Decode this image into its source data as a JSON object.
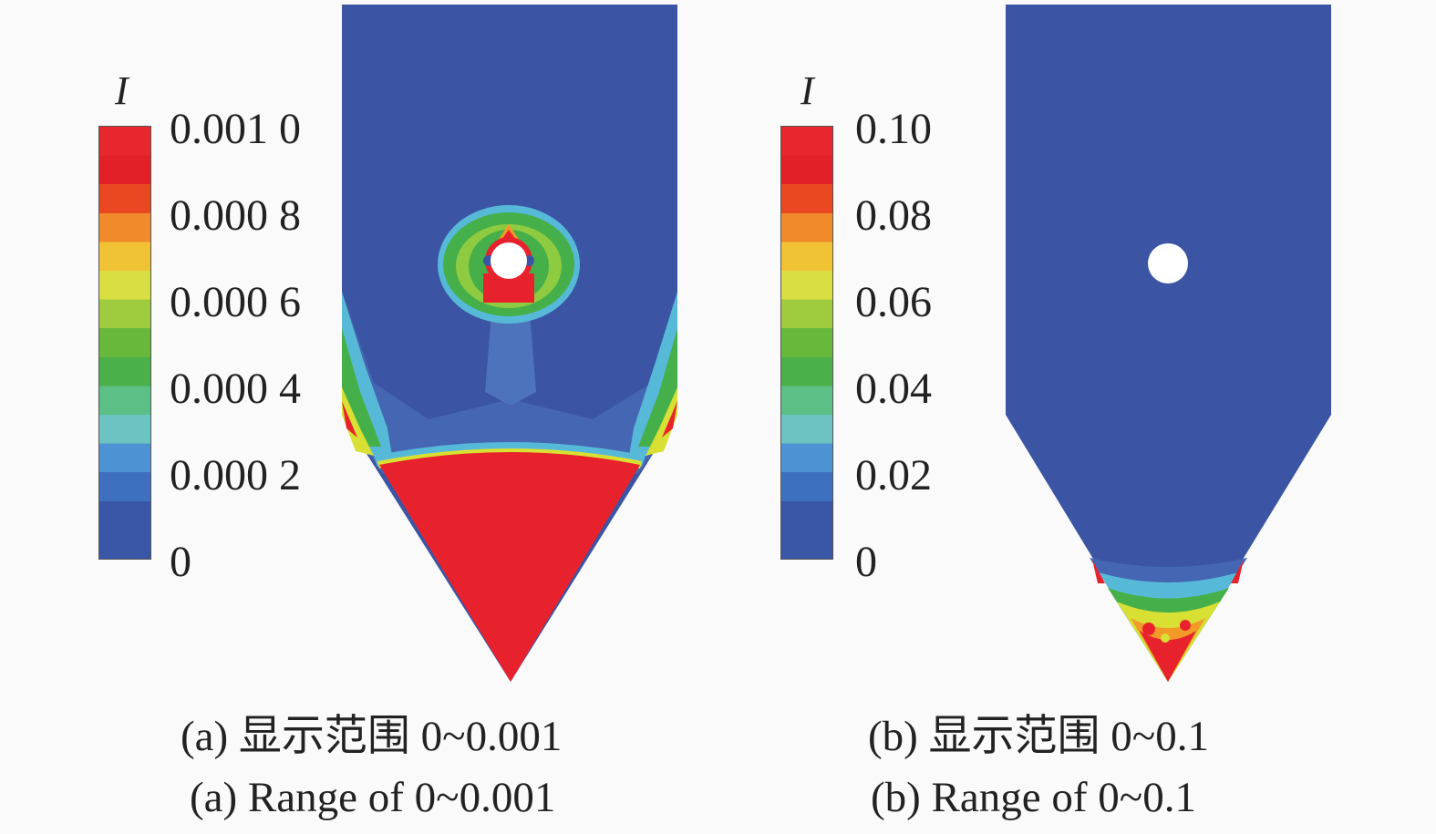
{
  "panels": [
    {
      "id": "a",
      "variable": "I",
      "ticks": [
        "0.001 0",
        "0.000 8",
        "0.000 6",
        "0.000 4",
        "0.000 2",
        "0"
      ],
      "caption_zh": "(a) 显示范围 0~0.001",
      "caption_en": "(a) Range of 0~0.001"
    },
    {
      "id": "b",
      "variable": "I",
      "ticks": [
        "0.10",
        "0.08",
        "0.06",
        "0.04",
        "0.02",
        "0"
      ],
      "caption_zh": "(b) 显示范围 0~0.1",
      "caption_en": "(b) Range of 0~0.1"
    }
  ],
  "colors": {
    "scale": [
      "#3a56a6",
      "#3a56a6",
      "#3f6fbf",
      "#4d93d3",
      "#6cc3c2",
      "#5bbf86",
      "#4cb04a",
      "#68b83c",
      "#9fcc3e",
      "#d9df42",
      "#f2c235",
      "#f08a2a",
      "#e8471f",
      "#e32027",
      "#e8262d"
    ],
    "low": "#3b55a4",
    "mid_blue": "#4566b2",
    "cyan": "#57b9d8",
    "green": "#45b04a",
    "yellow": "#d8e033",
    "orange": "#f29a28",
    "high": "#e8222c"
  }
}
